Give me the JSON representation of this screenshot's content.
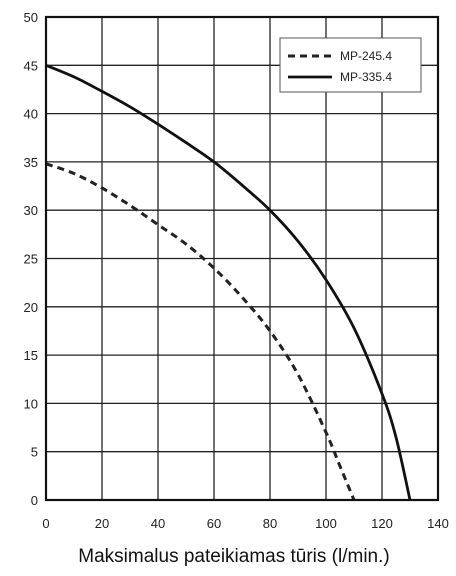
{
  "chart_data": {
    "type": "line",
    "title": "",
    "xlabel": "Maksimalus pateikiamas tūris (l/min.)",
    "ylabel": "",
    "xlim": [
      0,
      140
    ],
    "ylim": [
      0,
      50
    ],
    "x_ticks": [
      0,
      20,
      40,
      60,
      80,
      100,
      120,
      140
    ],
    "y_ticks": [
      0,
      5,
      10,
      15,
      20,
      25,
      30,
      35,
      40,
      45,
      50
    ],
    "grid": true,
    "legend_position": "top-right",
    "series": [
      {
        "name": "MP-245.4",
        "style": "dashed",
        "color": "#222222",
        "x": [
          0,
          10,
          20,
          30,
          40,
          50,
          60,
          70,
          80,
          90,
          100,
          105,
          110
        ],
        "y": [
          34.8,
          33.8,
          32.3,
          30.5,
          28.5,
          26.5,
          24.0,
          21.0,
          17.5,
          13.0,
          7.0,
          3.5,
          0
        ]
      },
      {
        "name": "MP-335.4",
        "style": "solid",
        "color": "#111111",
        "x": [
          0,
          10,
          20,
          30,
          40,
          50,
          60,
          70,
          80,
          90,
          100,
          110,
          120,
          125,
          130
        ],
        "y": [
          45.0,
          43.8,
          42.3,
          40.7,
          38.9,
          37.0,
          35.0,
          32.6,
          30.0,
          26.8,
          22.8,
          17.8,
          11.0,
          6.5,
          0
        ]
      }
    ]
  }
}
